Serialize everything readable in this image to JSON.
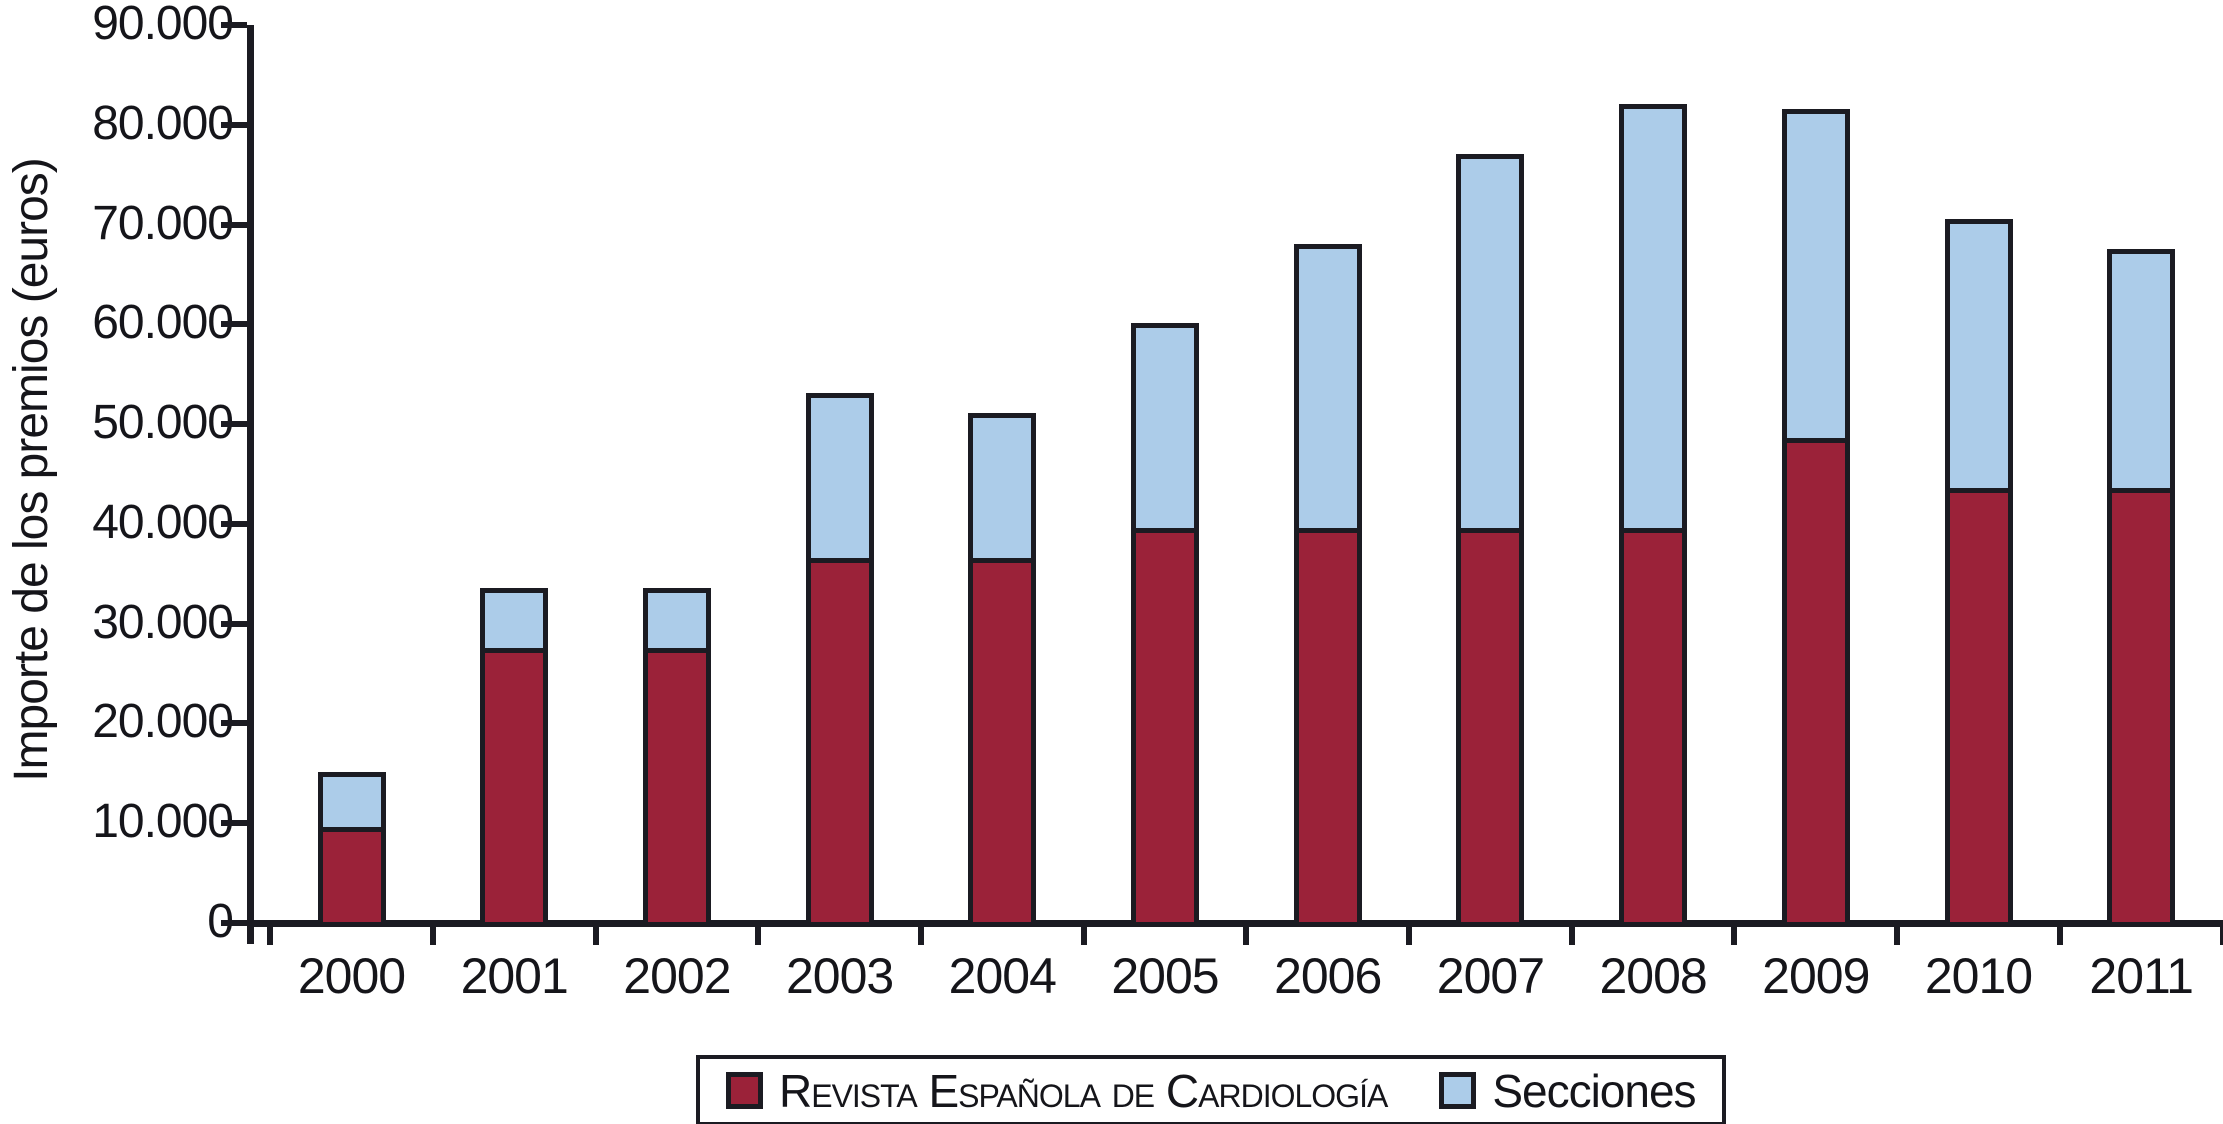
{
  "figure": {
    "ylabel": "Importe de los premios (euros)"
  },
  "chart_data": {
    "type": "bar",
    "stacked": true,
    "title": "",
    "xlabel": "",
    "ylabel": "Importe de los premios (euros)",
    "categories": [
      "2000",
      "2001",
      "2002",
      "2003",
      "2004",
      "2005",
      "2006",
      "2007",
      "2008",
      "2009",
      "2010",
      "2011"
    ],
    "series": [
      {
        "name": "Revista Española de Cardiología",
        "color": "#9b2239",
        "values": [
          9000,
          27000,
          27000,
          36000,
          36000,
          39000,
          39000,
          39000,
          39000,
          48000,
          43000,
          43000
        ]
      },
      {
        "name": "Secciones",
        "color": "#accce9",
        "values": [
          5500,
          6000,
          6000,
          16500,
          14500,
          20500,
          28500,
          37500,
          42500,
          33000,
          27000,
          24000
        ]
      }
    ],
    "totals": [
      14500,
      33000,
      33000,
      52500,
      50500,
      59500,
      67500,
      76500,
      81500,
      81000,
      70000,
      67000
    ],
    "ylim": [
      0,
      90000
    ],
    "ytick_step": 10000,
    "ytick_labels": [
      "0",
      "10.000",
      "20.000",
      "30.000",
      "40.000",
      "50.000",
      "60.000",
      "70.000",
      "80.000",
      "90.000"
    ],
    "grid": false,
    "legend_position": "bottom",
    "colors": {
      "axis": "#1b1b22",
      "text": "#15151a",
      "background": "#ffffff"
    }
  }
}
